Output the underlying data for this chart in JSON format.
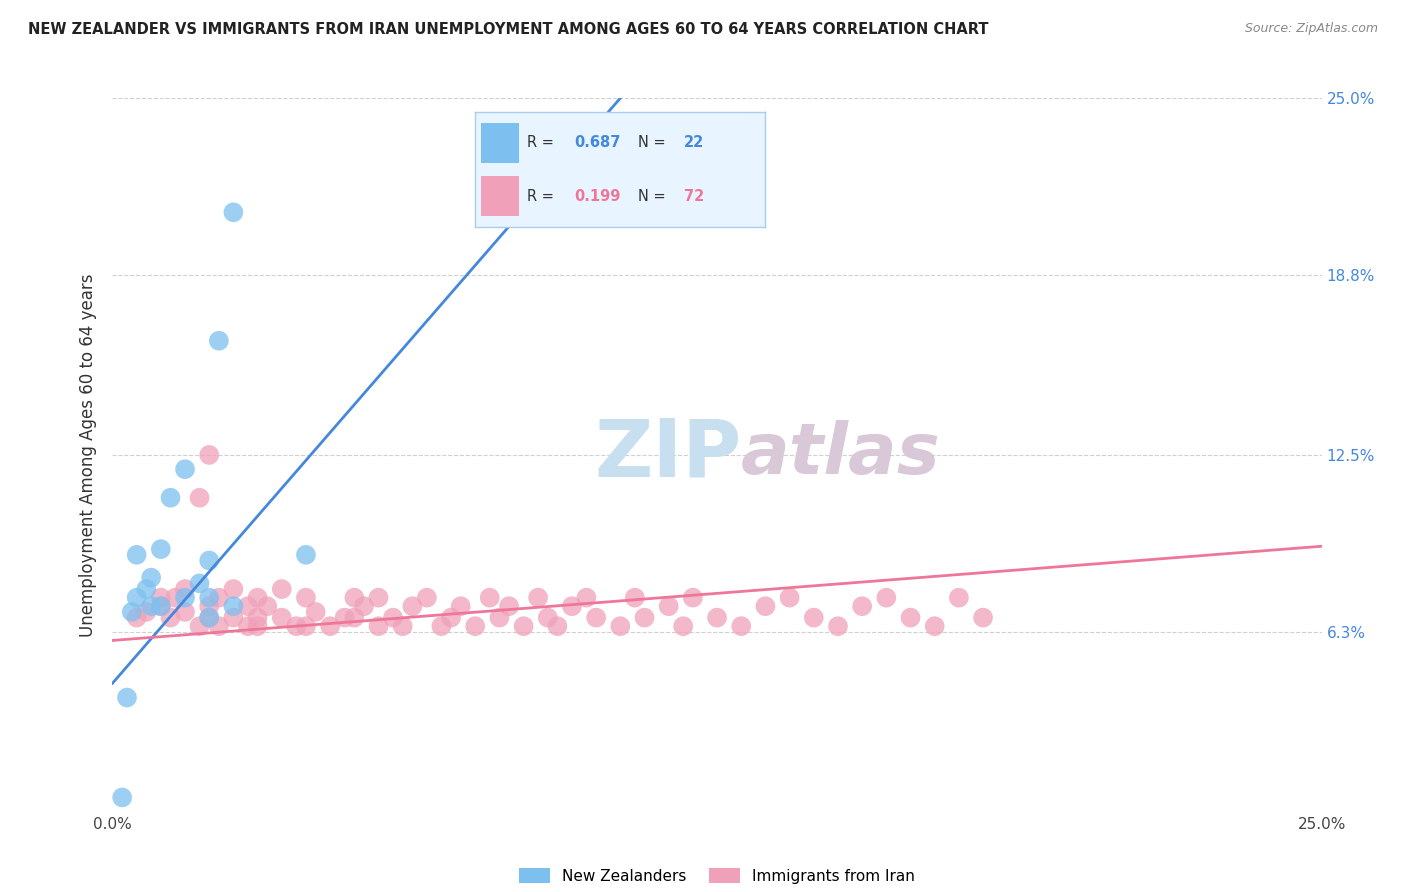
{
  "title": "NEW ZEALANDER VS IMMIGRANTS FROM IRAN UNEMPLOYMENT AMONG AGES 60 TO 64 YEARS CORRELATION CHART",
  "source": "Source: ZipAtlas.com",
  "ylabel": "Unemployment Among Ages 60 to 64 years",
  "xlim": [
    0.0,
    0.25
  ],
  "ylim": [
    0.0,
    0.25
  ],
  "ytick_positions": [
    0.0,
    0.063,
    0.125,
    0.188,
    0.25
  ],
  "ytick_labels": [
    "",
    "6.3%",
    "12.5%",
    "18.8%",
    "25.0%"
  ],
  "grid_color": "#d0d0d0",
  "background_color": "#ffffff",
  "watermark_zip_color": "#c8dff0",
  "watermark_atlas_color": "#d8c8d8",
  "nz_color": "#7dc0f0",
  "iran_color": "#f0a0b8",
  "nz_line_color": "#4488dd",
  "iran_line_color": "#ee7799",
  "nz_R": 0.687,
  "nz_N": 22,
  "iran_R": 0.199,
  "iran_N": 72,
  "legend_box_color": "#e8f4ff",
  "legend_border_color": "#aaccee",
  "nz_scatter_x": [
    0.002,
    0.003,
    0.004,
    0.005,
    0.005,
    0.007,
    0.008,
    0.008,
    0.01,
    0.01,
    0.012,
    0.015,
    0.015,
    0.018,
    0.02,
    0.02,
    0.02,
    0.022,
    0.025,
    0.025,
    0.04,
    0.1
  ],
  "nz_scatter_y": [
    0.005,
    0.04,
    0.07,
    0.075,
    0.09,
    0.078,
    0.072,
    0.082,
    0.072,
    0.092,
    0.11,
    0.075,
    0.12,
    0.08,
    0.068,
    0.075,
    0.088,
    0.165,
    0.072,
    0.21,
    0.09,
    0.22
  ],
  "iran_scatter_x": [
    0.005,
    0.007,
    0.01,
    0.01,
    0.012,
    0.013,
    0.015,
    0.015,
    0.018,
    0.018,
    0.02,
    0.02,
    0.02,
    0.022,
    0.022,
    0.025,
    0.025,
    0.028,
    0.028,
    0.03,
    0.03,
    0.03,
    0.032,
    0.035,
    0.035,
    0.038,
    0.04,
    0.04,
    0.042,
    0.045,
    0.048,
    0.05,
    0.05,
    0.052,
    0.055,
    0.055,
    0.058,
    0.06,
    0.062,
    0.065,
    0.068,
    0.07,
    0.072,
    0.075,
    0.078,
    0.08,
    0.082,
    0.085,
    0.088,
    0.09,
    0.092,
    0.095,
    0.098,
    0.1,
    0.105,
    0.108,
    0.11,
    0.115,
    0.118,
    0.12,
    0.125,
    0.13,
    0.135,
    0.14,
    0.145,
    0.15,
    0.155,
    0.16,
    0.165,
    0.17,
    0.175,
    0.18
  ],
  "iran_scatter_y": [
    0.068,
    0.07,
    0.072,
    0.075,
    0.068,
    0.075,
    0.07,
    0.078,
    0.11,
    0.065,
    0.125,
    0.072,
    0.068,
    0.075,
    0.065,
    0.078,
    0.068,
    0.072,
    0.065,
    0.068,
    0.075,
    0.065,
    0.072,
    0.068,
    0.078,
    0.065,
    0.075,
    0.065,
    0.07,
    0.065,
    0.068,
    0.075,
    0.068,
    0.072,
    0.065,
    0.075,
    0.068,
    0.065,
    0.072,
    0.075,
    0.065,
    0.068,
    0.072,
    0.065,
    0.075,
    0.068,
    0.072,
    0.065,
    0.075,
    0.068,
    0.065,
    0.072,
    0.075,
    0.068,
    0.065,
    0.075,
    0.068,
    0.072,
    0.065,
    0.075,
    0.068,
    0.065,
    0.072,
    0.075,
    0.068,
    0.065,
    0.072,
    0.075,
    0.068,
    0.065,
    0.075,
    0.068
  ],
  "nz_line_x0": 0.0,
  "nz_line_y0": 0.045,
  "nz_line_x1": 0.105,
  "nz_line_y1": 0.25,
  "iran_line_x0": 0.0,
  "iran_line_y0": 0.06,
  "iran_line_x1": 0.25,
  "iran_line_y1": 0.093
}
